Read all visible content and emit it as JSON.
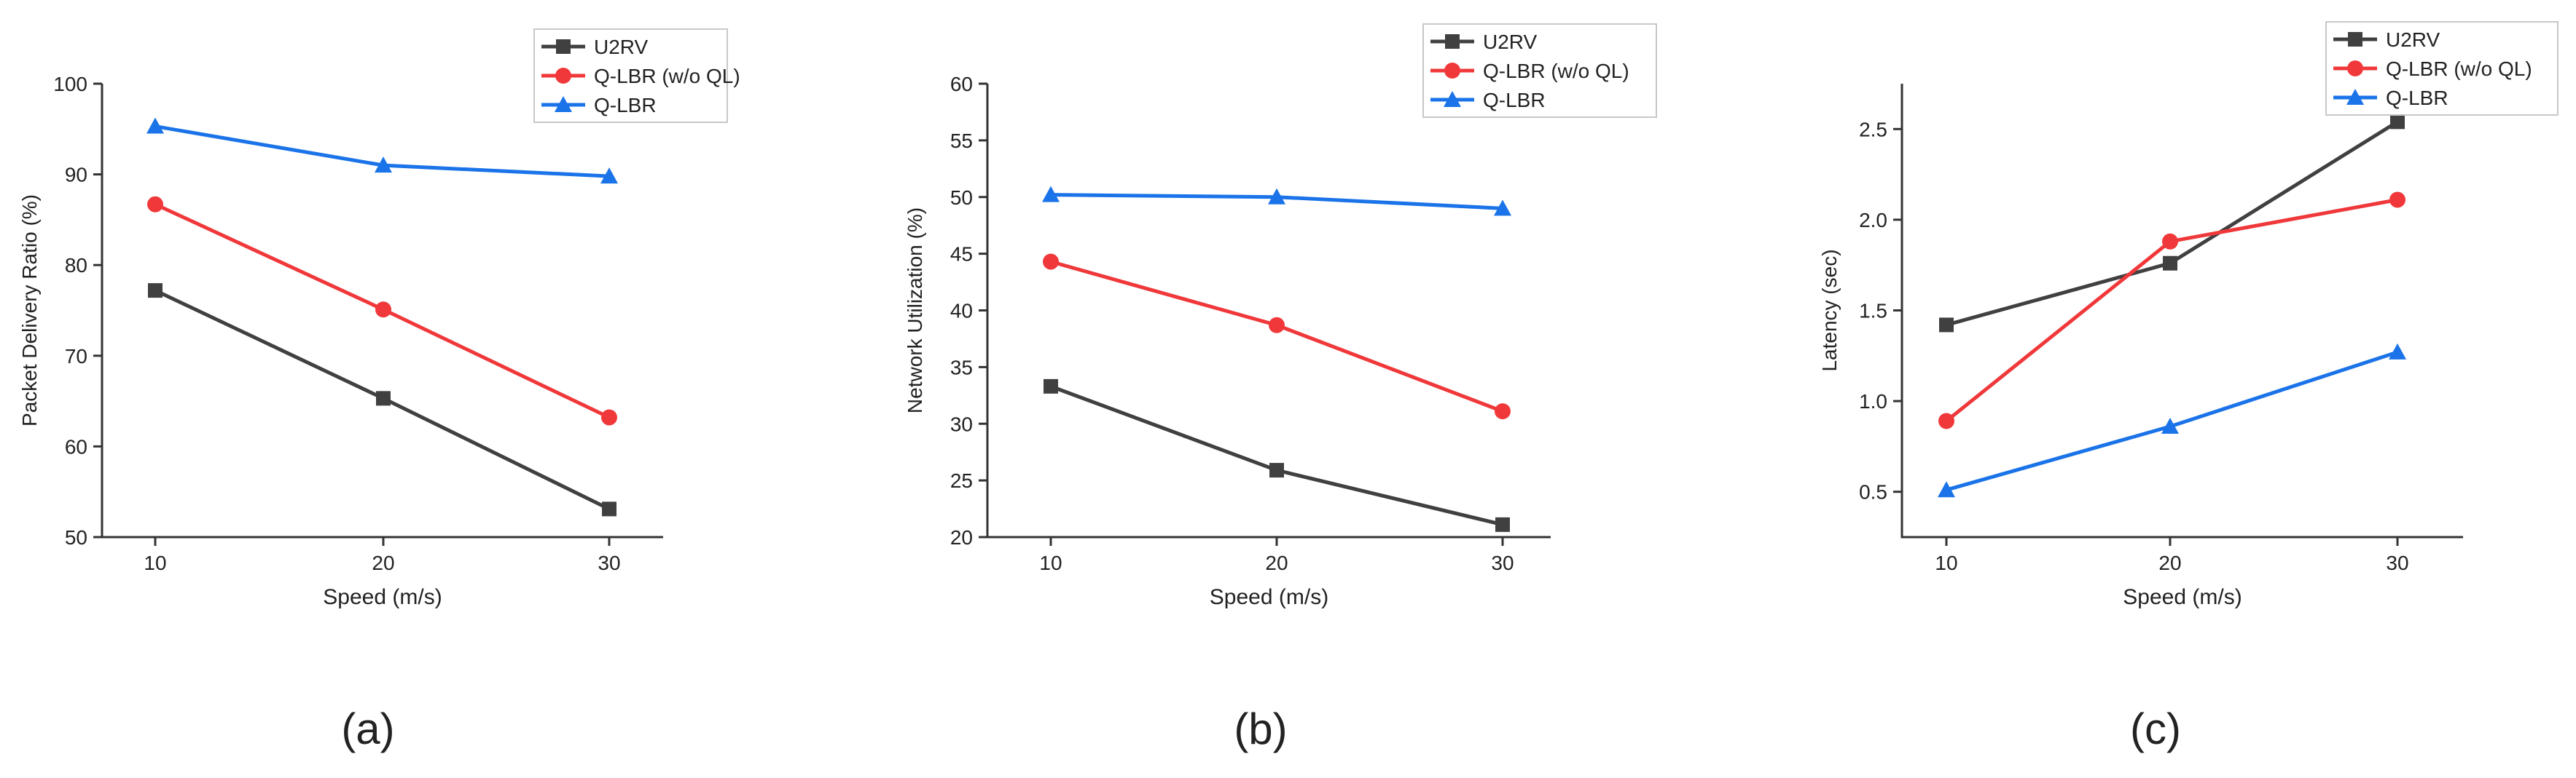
{
  "colors": {
    "U2RV": "#404040",
    "Q-LBR (w/o QL)": "#f0383a",
    "Q-LBR": "#1a73e8",
    "axis": "#333333"
  },
  "panel_labels": [
    "(a)",
    "(b)",
    "(c)"
  ],
  "chart_data": [
    {
      "type": "line",
      "panel": "(a)",
      "xlabel": "Speed (m/s)",
      "ylabel": "Packet Delivery Ratio (%)",
      "x": [
        10,
        20,
        30
      ],
      "xticks": [
        "10",
        "20",
        "30"
      ],
      "ylim": [
        50,
        100
      ],
      "yticks": [
        "50",
        "60",
        "70",
        "80",
        "90",
        "100"
      ],
      "legend": [
        "U2RV",
        "Q-LBR (w/o QL)",
        "Q-LBR"
      ],
      "series": [
        {
          "name": "U2RV",
          "marker": "square",
          "values": [
            77.2,
            65.3,
            53.1
          ]
        },
        {
          "name": "Q-LBR (w/o QL)",
          "marker": "circle",
          "values": [
            86.7,
            75.1,
            63.2
          ]
        },
        {
          "name": "Q-LBR",
          "marker": "triangle",
          "values": [
            95.3,
            91.0,
            89.8
          ]
        }
      ]
    },
    {
      "type": "line",
      "panel": "(b)",
      "xlabel": "Speed (m/s)",
      "ylabel": "Network Utilization (%)",
      "x": [
        10,
        20,
        30
      ],
      "xticks": [
        "10",
        "20",
        "30"
      ],
      "ylim": [
        20,
        60
      ],
      "yticks": [
        "20",
        "25",
        "30",
        "35",
        "40",
        "45",
        "50",
        "55",
        "60"
      ],
      "legend": [
        "U2RV",
        "Q-LBR (w/o QL)",
        "Q-LBR"
      ],
      "series": [
        {
          "name": "U2RV",
          "marker": "square",
          "values": [
            33.3,
            25.9,
            21.1
          ]
        },
        {
          "name": "Q-LBR (w/o QL)",
          "marker": "circle",
          "values": [
            44.3,
            38.7,
            31.1
          ]
        },
        {
          "name": "Q-LBR",
          "marker": "triangle",
          "values": [
            50.2,
            50.0,
            49.0
          ]
        }
      ]
    },
    {
      "type": "line",
      "panel": "(c)",
      "xlabel": "Speed (m/s)",
      "ylabel": "Latency (sec)",
      "x": [
        10,
        20,
        30
      ],
      "xticks": [
        "10",
        "20",
        "30"
      ],
      "ylim": [
        0.25,
        2.75
      ],
      "yticks": [
        "0.5",
        "1.0",
        "1.5",
        "2.0",
        "2.5"
      ],
      "legend": [
        "U2RV",
        "Q-LBR (w/o QL)",
        "Q-LBR"
      ],
      "series": [
        {
          "name": "U2RV",
          "marker": "square",
          "values": [
            1.42,
            1.76,
            2.54
          ]
        },
        {
          "name": "Q-LBR (w/o QL)",
          "marker": "circle",
          "values": [
            0.89,
            1.88,
            2.11
          ]
        },
        {
          "name": "Q-LBR",
          "marker": "triangle",
          "values": [
            0.51,
            0.86,
            1.27
          ]
        }
      ]
    }
  ]
}
